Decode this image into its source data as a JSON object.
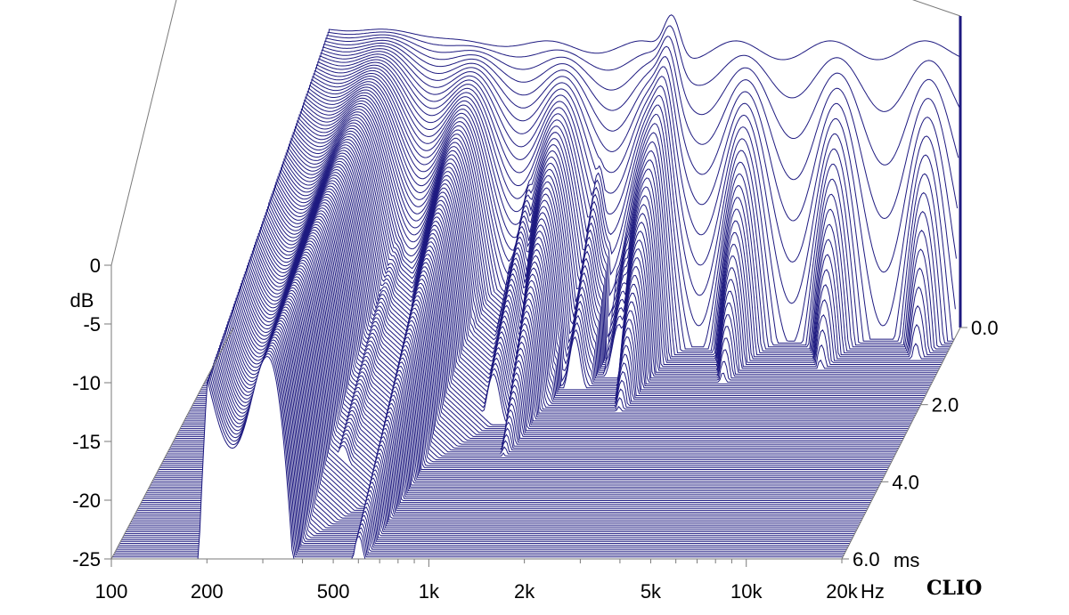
{
  "chart_data": {
    "type": "waterfall",
    "brand": "CLIO",
    "x_axis": {
      "unit": "Hz",
      "scale": "log",
      "range": [
        100,
        20000
      ],
      "ticks": [
        {
          "value": 100,
          "label": "100"
        },
        {
          "value": 200,
          "label": "200"
        },
        {
          "value": 500,
          "label": "500"
        },
        {
          "value": 1000,
          "label": "1k"
        },
        {
          "value": 2000,
          "label": "2k"
        },
        {
          "value": 5000,
          "label": "5k"
        },
        {
          "value": 10000,
          "label": "10k"
        },
        {
          "value": 20000,
          "label": "20k"
        }
      ]
    },
    "y_axis": {
      "label": "dB",
      "range": [
        -25,
        0
      ],
      "ticks": [
        {
          "value": 0,
          "label": "0"
        },
        {
          "value": -5,
          "label": "-5"
        },
        {
          "value": -10,
          "label": "-10"
        },
        {
          "value": -15,
          "label": "-15"
        },
        {
          "value": -20,
          "label": "-20"
        },
        {
          "value": -25,
          "label": "-25"
        }
      ]
    },
    "z_axis": {
      "unit": "ms",
      "range": [
        0,
        6
      ],
      "ticks": [
        {
          "value": 0,
          "label": "0.0"
        },
        {
          "value": 2,
          "label": "2.0"
        },
        {
          "value": 4,
          "label": "4.0"
        },
        {
          "value": 6,
          "label": "6.0"
        }
      ]
    },
    "slice_count": 120,
    "colors": {
      "line": "#1e1a80",
      "fill": "#ffffff",
      "floor": "#8c8cc8",
      "axis": "#7a7a7a",
      "text": "#000000"
    }
  }
}
